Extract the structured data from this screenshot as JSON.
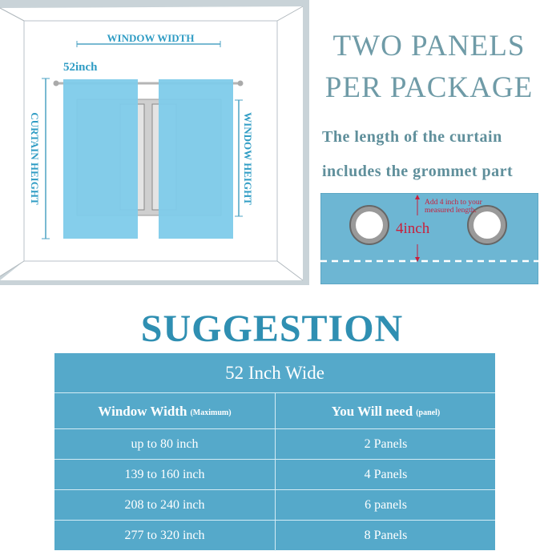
{
  "diagram": {
    "window_width_label": "WINDOW WIDTH",
    "curtain_width_label": "52inch",
    "curtain_height_label": "CURTAIN HEIGHT",
    "window_height_label": "WINDOW HEIGHT",
    "curtain_color": "#7ecbea"
  },
  "headline": {
    "line1": "TWO PANELS",
    "line2": "PER PACKAGE"
  },
  "note": {
    "line1": "The length of the curtain",
    "line2": "includes the grommet  part"
  },
  "grommet_panel": {
    "note": [
      "Add 4 inch to your",
      "measured length."
    ],
    "measure": "4inch",
    "panel_color": "#6db6d3",
    "accent_color": "#c8203c"
  },
  "suggestion": {
    "title": "SUGGESTION",
    "table_title": "52 Inch Wide",
    "headers": [
      {
        "main": "Window Width",
        "note": "(Maximum)"
      },
      {
        "main": "You Will need",
        "note": "(panel)"
      }
    ],
    "rows": [
      [
        "up to 80 inch",
        "2 Panels"
      ],
      [
        "139 to 160 inch",
        "4 Panels"
      ],
      [
        "208 to 240 inch",
        "6 panels"
      ],
      [
        "277 to 320 inch",
        "8 Panels"
      ]
    ],
    "table_color": "#55a9ca"
  }
}
